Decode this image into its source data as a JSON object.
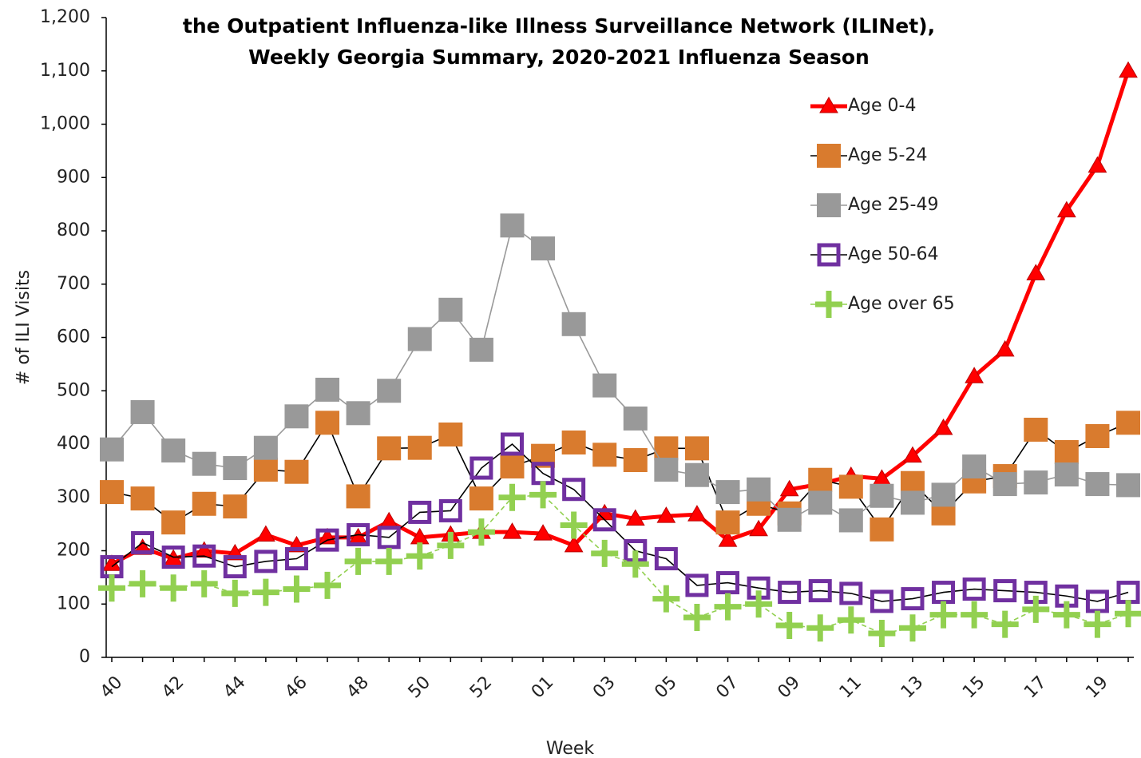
{
  "chart_data": {
    "type": "line",
    "title": [
      "the Outpatient Influenza-like Illness Surveillance Network (ILINet),",
      "Weekly Georgia Summary, 2020-2021 Influenza Season"
    ],
    "x_label": "Week",
    "y_label": "# of ILI Visits",
    "categories": [
      "40",
      null,
      "42",
      null,
      "44",
      null,
      "46",
      null,
      "48",
      null,
      "50",
      null,
      "52",
      null,
      "01",
      null,
      "03",
      null,
      "05",
      null,
      "07",
      null,
      "09",
      null,
      "11",
      null,
      "13",
      null,
      "15",
      null,
      "17",
      null,
      "19",
      null
    ],
    "ylim": [
      0,
      1200
    ],
    "yticks": [
      0,
      100,
      200,
      300,
      400,
      500,
      600,
      700,
      800,
      900,
      {
        "value": 1000,
        "label": "1,000"
      },
      {
        "value": 1100,
        "label": "1,100"
      },
      {
        "value": 1200,
        "label": "1,200"
      }
    ],
    "legend": "upper right",
    "series": [
      {
        "name": "Age 0-4",
        "color": "#ff0000",
        "line_color": "#ff0000",
        "marker": "triangle",
        "values": [
          175,
          205,
          185,
          200,
          195,
          230,
          210,
          225,
          225,
          255,
          225,
          230,
          235,
          235,
          232,
          210,
          270,
          260,
          265,
          268,
          220,
          240,
          315,
          325,
          340,
          335,
          378,
          430,
          527,
          577,
          720,
          838,
          922,
          1100
        ]
      },
      {
        "name": "Age 5-24",
        "color": "#d97b2e",
        "line_color": "#000000",
        "marker": "square",
        "values": [
          310,
          298,
          253,
          288,
          283,
          352,
          348,
          440,
          302,
          392,
          393,
          418,
          298,
          358,
          378,
          403,
          380,
          370,
          392,
          392,
          253,
          288,
          270,
          333,
          320,
          240,
          327,
          270,
          330,
          340,
          427,
          385,
          415,
          440
        ]
      },
      {
        "name": "Age 25-49",
        "color": "#999999",
        "line_color": "#999999",
        "marker": "square",
        "values": [
          390,
          460,
          388,
          363,
          355,
          393,
          452,
          502,
          458,
          500,
          597,
          652,
          577,
          810,
          767,
          625,
          510,
          448,
          352,
          342,
          310,
          315,
          258,
          290,
          257,
          303,
          290,
          305,
          358,
          325,
          328,
          343,
          325,
          323
        ]
      },
      {
        "name": "Age 50-64",
        "color": "#7030a0",
        "line_color": "#000000",
        "marker": "square-open",
        "values": [
          170,
          215,
          188,
          190,
          170,
          180,
          185,
          220,
          230,
          225,
          272,
          275,
          355,
          400,
          345,
          315,
          258,
          200,
          185,
          135,
          140,
          130,
          122,
          125,
          120,
          105,
          110,
          122,
          128,
          125,
          122,
          115,
          105,
          122
        ]
      },
      {
        "name": "Age over 65",
        "color": "#92d050",
        "line_color": "#92d050",
        "marker": "plus",
        "values": [
          130,
          138,
          130,
          138,
          120,
          122,
          128,
          135,
          180,
          180,
          190,
          210,
          235,
          300,
          305,
          248,
          195,
          175,
          110,
          75,
          95,
          100,
          60,
          55,
          70,
          45,
          55,
          80,
          80,
          62,
          90,
          80,
          62,
          82
        ]
      }
    ]
  }
}
